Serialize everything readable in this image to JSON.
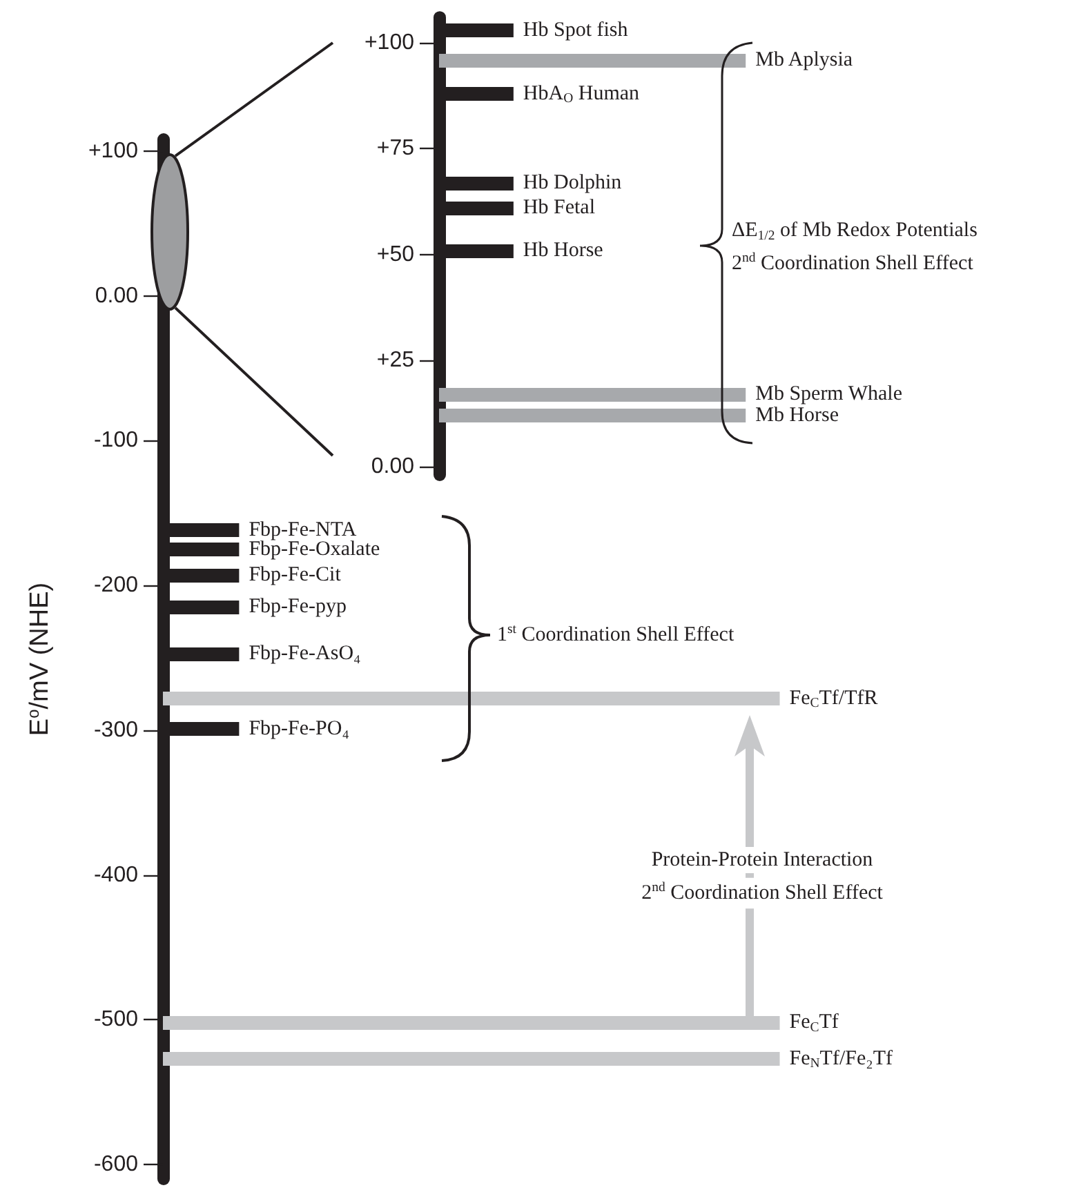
{
  "chart_data": [
    {
      "type": "line",
      "categories": [
        null
      ],
      "ylabel": "E$^{o}$/mV (NHE)",
      "ylim": [
        -610,
        108
      ],
      "yticks": [
        {
          "value": 100,
          "label": "+100"
        },
        {
          "value": 0,
          "label": "0.00"
        },
        -100,
        -200,
        -300,
        -400,
        -500,
        -600
      ],
      "ref_lines": [
        {
          "axis": "y",
          "value": -162,
          "label": "Fbp-Fe-NTA",
          "color": "#231f20"
        },
        {
          "axis": "y",
          "value": -175,
          "label": "Fbp-Fe-Oxalate",
          "color": "#231f20"
        },
        {
          "axis": "y",
          "value": -193,
          "label": "Fbp-Fe-Cit",
          "color": "#231f20"
        },
        {
          "axis": "y",
          "value": -215,
          "label": "Fbp-Fe-pyp",
          "color": "#231f20"
        },
        {
          "axis": "y",
          "value": -247,
          "label": "Fbp-Fe-AsO₄",
          "color": "#231f20"
        },
        {
          "axis": "y",
          "value": -299,
          "label": "Fbp-Fe-PO₄",
          "color": "#231f20"
        },
        {
          "axis": "y",
          "value": -278,
          "label": "Fe$_{C}$Tf/TfR",
          "color": "#c7c8ca"
        },
        {
          "axis": "y",
          "value": -502,
          "label": "Fe$_{C}$Tf",
          "color": "#c7c8ca"
        },
        {
          "axis": "y",
          "value": -527,
          "label": "Fe$_{N}$Tf/Fe₂Tf",
          "color": "#c7c8ca"
        }
      ],
      "annotations": [
        "1$^{st}$ Coordination Shell Effect",
        "Protein-Protein Interaction",
        "2$^{nd}$ Coordination Shell Effect"
      ]
    },
    {
      "type": "line",
      "categories": [
        null
      ],
      "ylim": [
        -2,
        106
      ],
      "yticks": [
        {
          "value": 100,
          "label": "+100"
        },
        {
          "value": 75,
          "label": "+75"
        },
        {
          "value": 50,
          "label": "+50"
        },
        {
          "value": 25,
          "label": "+25"
        },
        {
          "value": 0,
          "label": "0.00"
        }
      ],
      "ref_lines": [
        {
          "axis": "y",
          "value": 103,
          "label": "Hb Spot fish",
          "color": "#231f20"
        },
        {
          "axis": "y",
          "value": 96,
          "label": "Mb Aplysia",
          "color": "#a7a9ac"
        },
        {
          "axis": "y",
          "value": 88,
          "label": "HbA$_{O}$ Human",
          "color": "#231f20"
        },
        {
          "axis": "y",
          "value": 67,
          "label": "Hb Dolphin",
          "color": "#231f20"
        },
        {
          "axis": "y",
          "value": 61,
          "label": "Hb Fetal",
          "color": "#231f20"
        },
        {
          "axis": "y",
          "value": 51,
          "label": "Hb Horse",
          "color": "#231f20"
        },
        {
          "axis": "y",
          "value": 17,
          "label": "Mb Sperm Whale",
          "color": "#a7a9ac"
        },
        {
          "axis": "y",
          "value": 12,
          "label": "Mb Horse",
          "color": "#a7a9ac"
        }
      ],
      "annotations": [
        "ΔE$_{1/2}$ of Mb Redox Potentials",
        "2$^{nd}$ Coordination Shell Effect"
      ]
    }
  ]
}
